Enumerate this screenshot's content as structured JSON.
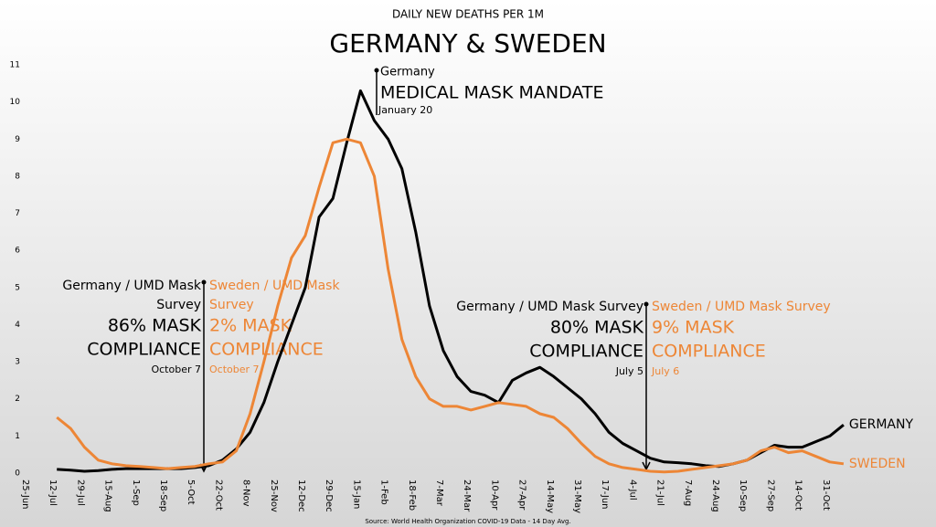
{
  "chart_data": {
    "type": "line",
    "subtitle": "DAILY NEW DEATHS PER 1M",
    "title": "GERMANY & SWEDEN",
    "source": "Source: World Health Organization COVID-19 Data - 14 Day Avg.",
    "categories": [
      "25-Jun",
      null,
      "12-Jul",
      null,
      "29-Jul",
      null,
      "15-Aug",
      null,
      "1-Sep",
      null,
      "18-Sep",
      null,
      "5-Oct",
      null,
      "22-Oct",
      null,
      "8-Nov",
      null,
      "25-Nov",
      null,
      "12-Dec",
      null,
      "29-Dec",
      null,
      "15-Jan",
      null,
      "1-Feb",
      null,
      "18-Feb",
      null,
      "7-Mar",
      null,
      "24-Mar",
      null,
      "10-Apr",
      null,
      "27-Apr",
      null,
      "14-May",
      null,
      "31-May",
      null,
      "17-Jun",
      null,
      "4-Jul",
      null,
      "21-Jul",
      null,
      "7-Aug",
      null,
      "24-Aug",
      null,
      "10-Sep",
      null,
      "27-Sep",
      null,
      "14-Oct",
      null,
      "31-Oct",
      null
    ],
    "series": [
      {
        "name": "GERMANY",
        "color": "#000000",
        "values": [
          null,
          null,
          0.1,
          0.08,
          0.05,
          0.07,
          0.1,
          0.12,
          0.12,
          0.12,
          0.12,
          0.12,
          0.15,
          0.2,
          0.35,
          0.65,
          1.1,
          1.9,
          3.0,
          4.0,
          5.0,
          6.9,
          7.4,
          8.9,
          10.3,
          9.5,
          9.0,
          8.2,
          6.5,
          4.5,
          3.3,
          2.6,
          2.2,
          2.1,
          1.9,
          2.5,
          2.7,
          2.85,
          2.6,
          2.3,
          2.0,
          1.6,
          1.1,
          0.8,
          0.6,
          0.4,
          0.3,
          0.28,
          0.25,
          0.2,
          0.18,
          0.25,
          0.35,
          0.55,
          0.75,
          0.7,
          0.7,
          0.85,
          1.0,
          1.3
        ]
      },
      {
        "name": "SWEDEN",
        "color": "#ed8636",
        "values": [
          null,
          null,
          1.5,
          1.2,
          0.7,
          0.35,
          0.25,
          0.2,
          0.18,
          0.15,
          0.12,
          0.15,
          0.18,
          0.25,
          0.3,
          0.6,
          1.6,
          3.0,
          4.5,
          5.8,
          6.4,
          7.7,
          8.9,
          9.0,
          8.9,
          8.0,
          5.5,
          3.6,
          2.6,
          2.0,
          1.8,
          1.8,
          1.7,
          1.8,
          1.9,
          1.85,
          1.8,
          1.6,
          1.5,
          1.2,
          0.8,
          0.45,
          0.25,
          0.15,
          0.1,
          0.05,
          0.03,
          0.05,
          0.1,
          0.15,
          0.2,
          0.25,
          0.35,
          0.6,
          0.7,
          0.55,
          0.6,
          0.45,
          0.3,
          0.25
        ]
      }
    ],
    "ylim": [
      0,
      11
    ],
    "yticks": [
      0,
      1,
      2,
      3,
      4,
      5,
      6,
      7,
      8,
      9,
      10,
      11
    ],
    "annotations": [
      "Germany",
      "MEDICAL MASK MANDATE",
      "January 20",
      "Germany / UMD Mask",
      "Survey",
      "86% MASK",
      "COMPLIANCE",
      "October 7",
      "Sweden / UMD Mask",
      "Survey",
      "2% MASK",
      "COMPLIANCE",
      "October 7",
      "Germany / UMD Mask Survey",
      "80% MASK",
      "COMPLIANCE",
      "July 5",
      "Sweden / UMD Mask Survey",
      "9% MASK",
      "COMPLIANCE",
      "July 6"
    ]
  }
}
